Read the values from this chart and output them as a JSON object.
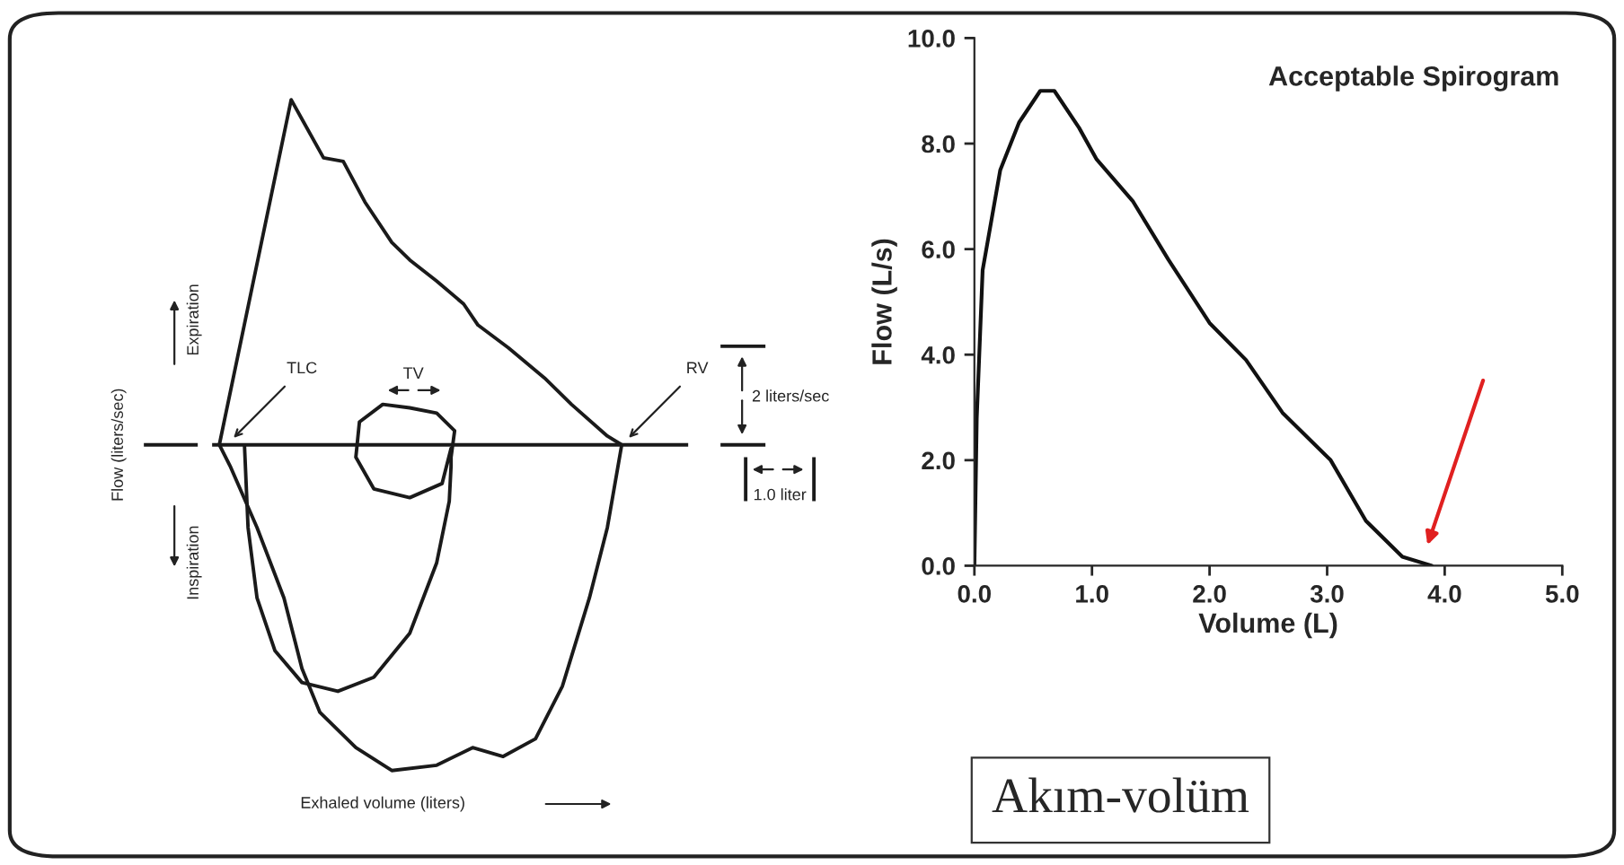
{
  "chart_data": [
    {
      "type": "other",
      "xlabel": "Exhaled volume (liters)",
      "ylabel": "Flow (liters/sec)",
      "annotations": [
        "TLC",
        "RV",
        "TV",
        "Expiration",
        "Inspiration",
        "2 liters/sec",
        "1.0 liter"
      ]
    },
    {
      "type": "line",
      "title": "Acceptable Spirogram",
      "xlabel": "Volume (L)",
      "ylabel": "Flow (L/s)",
      "x": [
        0,
        0.02,
        0.07,
        0.22,
        0.38,
        0.56,
        0.68,
        0.89,
        1.04,
        1.35,
        1.65,
        2.0,
        2.31,
        2.62,
        3.03,
        3.33,
        3.64,
        3.89
      ],
      "values": [
        0,
        2.8,
        5.6,
        7.5,
        8.4,
        9.0,
        9.0,
        8.3,
        7.7,
        6.9,
        5.8,
        4.6,
        3.9,
        2.9,
        2.0,
        0.85,
        0.17,
        0.0
      ],
      "color": "#111111",
      "xlim": [
        0,
        5
      ],
      "ylim": [
        0,
        10
      ],
      "xticks": [
        {
          "value": 0,
          "label": "0.0"
        },
        {
          "value": 1,
          "label": "1.0"
        },
        {
          "value": 2,
          "label": "2.0"
        },
        {
          "value": 3,
          "label": "3.0"
        },
        {
          "value": 4,
          "label": "4.0"
        },
        {
          "value": 5,
          "label": "5.0"
        }
      ],
      "yticks": [
        {
          "value": 0,
          "label": "0.0"
        },
        {
          "value": 2,
          "label": "2.0"
        },
        {
          "value": 4,
          "label": "4.0"
        },
        {
          "value": 6,
          "label": "6.0"
        },
        {
          "value": 8,
          "label": "8.0"
        },
        {
          "value": 10,
          "label": "10.0"
        }
      ],
      "annotations": [
        "Akım-volüm"
      ]
    }
  ]
}
